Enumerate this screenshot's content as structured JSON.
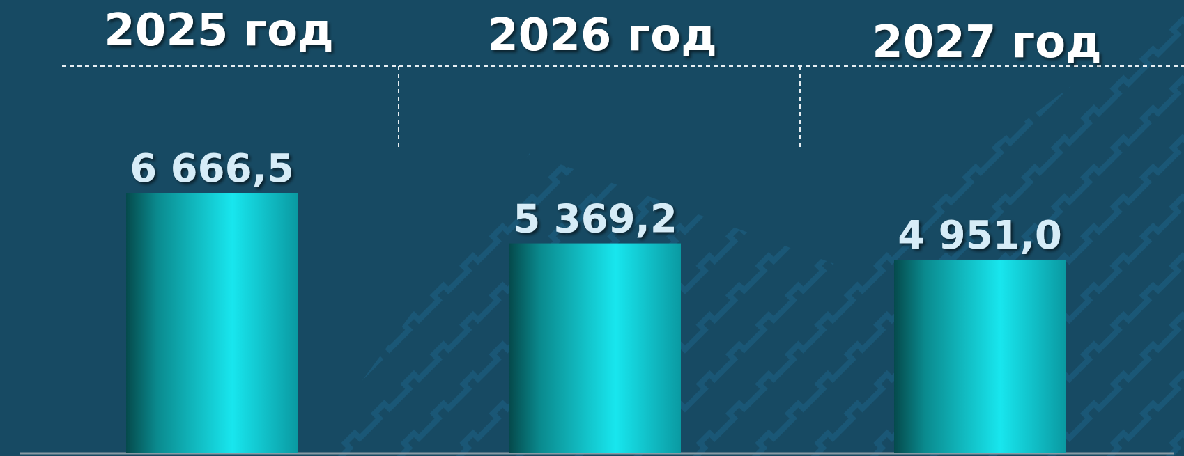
{
  "chart_data": {
    "type": "bar",
    "categories": [
      "2025 год",
      "2026 год",
      "2027 год"
    ],
    "values": [
      6666.5,
      5369.2,
      4951.0
    ],
    "value_labels": [
      "6 666,5",
      "5 369,2",
      "4 951,0"
    ],
    "color": "#18e3ec"
  }
}
